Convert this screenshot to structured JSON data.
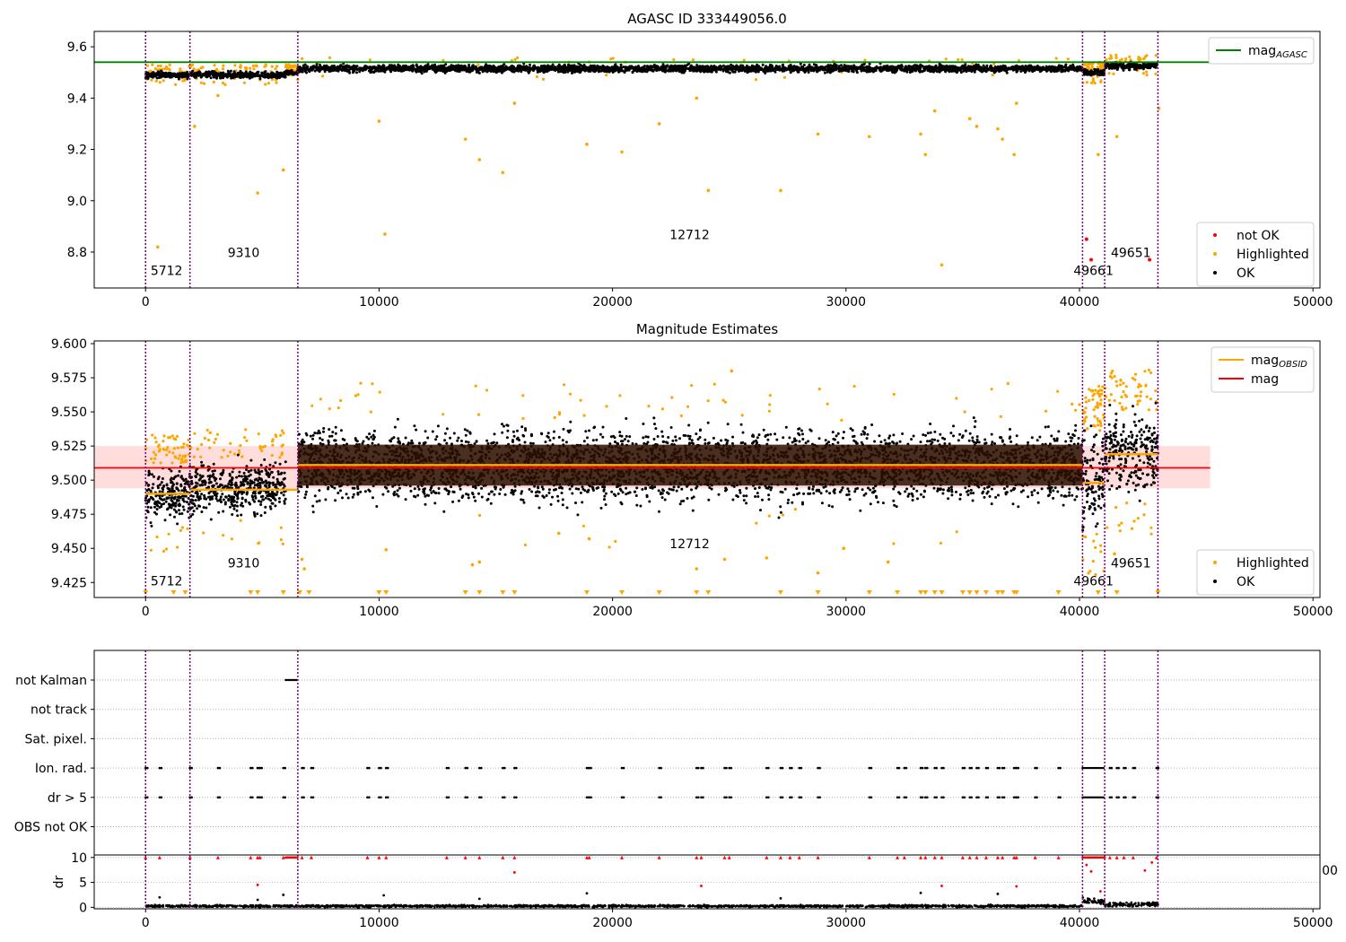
{
  "chart_data": [
    {
      "type": "scatter",
      "title": "AGASC ID 333449056.0",
      "xlim": [
        -2200,
        50300
      ],
      "ylim": [
        8.66,
        9.66
      ],
      "x_ticks": [
        0,
        10000,
        20000,
        30000,
        40000,
        50000
      ],
      "y_ticks": [
        8.8,
        9.0,
        9.2,
        9.4,
        9.6
      ],
      "y_tick_labels": [
        "8.8",
        "9.0",
        "9.2",
        "9.4",
        "9.6"
      ],
      "obs_boundaries": [
        0,
        1900,
        6520,
        40130,
        41080,
        43360
      ],
      "obs_labels": [
        {
          "text": "5712",
          "x": 900,
          "y": 8.71
        },
        {
          "text": "9310",
          "x": 4200,
          "y": 8.78
        },
        {
          "text": "12712",
          "x": 23300,
          "y": 8.85
        },
        {
          "text": "49661",
          "x": 40600,
          "y": 8.71
        },
        {
          "text": "49651",
          "x": 42200,
          "y": 8.78
        }
      ],
      "reference_lines": [
        {
          "name": "mag_AGASC",
          "value": 9.54,
          "color": "#008000",
          "x_range": [
            -2200,
            45600
          ]
        }
      ],
      "series": [
        {
          "name": "OK",
          "color": "#000000",
          "segments": [
            {
              "x": [
                0,
                1900
              ],
              "center": 9.49,
              "spread": 0.02
            },
            {
              "x": [
                1900,
                6000
              ],
              "center": 9.49,
              "spread": 0.02
            },
            {
              "x": [
                6000,
                6520
              ],
              "center": 9.5,
              "spread": 0.015
            },
            {
              "x": [
                6520,
                40130
              ],
              "center": 9.515,
              "spread": 0.022
            },
            {
              "x": [
                40130,
                41080
              ],
              "center": 9.5,
              "spread": 0.022
            },
            {
              "x": [
                41080,
                43360
              ],
              "center": 9.525,
              "spread": 0.022
            }
          ]
        },
        {
          "name": "Highlighted",
          "color": "#ffa500",
          "points": [
            [
              520,
              8.82
            ],
            [
              4800,
              9.03
            ],
            [
              5900,
              9.12
            ],
            [
              2100,
              9.29
            ],
            [
              3100,
              9.41
            ],
            [
              10000,
              9.31
            ],
            [
              10250,
              8.87
            ],
            [
              13700,
              9.24
            ],
            [
              14300,
              9.16
            ],
            [
              15300,
              9.11
            ],
            [
              15800,
              9.38
            ],
            [
              18900,
              9.22
            ],
            [
              20400,
              9.19
            ],
            [
              22000,
              9.3
            ],
            [
              23600,
              9.4
            ],
            [
              24100,
              9.04
            ],
            [
              27200,
              9.04
            ],
            [
              28800,
              9.26
            ],
            [
              31000,
              9.25
            ],
            [
              33200,
              9.26
            ],
            [
              33400,
              9.18
            ],
            [
              33800,
              9.35
            ],
            [
              34100,
              8.75
            ],
            [
              35300,
              9.32
            ],
            [
              35600,
              9.29
            ],
            [
              36500,
              9.28
            ],
            [
              36700,
              9.24
            ],
            [
              37200,
              9.18
            ],
            [
              37300,
              9.38
            ],
            [
              40800,
              9.18
            ],
            [
              41600,
              9.25
            ],
            [
              43400,
              9.36
            ]
          ],
          "band_points": 240
        },
        {
          "name": "not OK",
          "color": "#ff0000",
          "points": [
            [
              40300,
              8.85
            ],
            [
              40500,
              8.77
            ],
            [
              43000,
              8.77
            ]
          ]
        }
      ],
      "legends": [
        {
          "position": "upper right",
          "entries": [
            {
              "label": "mag",
              "subscript": "AGASC",
              "color": "#008000",
              "kind": "line"
            }
          ]
        },
        {
          "position": "lower right",
          "entries": [
            {
              "label": "not OK",
              "color": "#ff0000",
              "kind": "marker"
            },
            {
              "label": "Highlighted",
              "color": "#ffa500",
              "kind": "marker"
            },
            {
              "label": "OK",
              "color": "#000000",
              "kind": "marker"
            }
          ]
        }
      ]
    },
    {
      "type": "scatter",
      "title": "Magnitude Estimates",
      "xlim": [
        -2200,
        50300
      ],
      "ylim": [
        9.414,
        9.602
      ],
      "x_ticks": [
        0,
        10000,
        20000,
        30000,
        40000,
        50000
      ],
      "y_ticks": [
        9.425,
        9.45,
        9.475,
        9.5,
        9.525,
        9.55,
        9.575,
        9.6
      ],
      "y_tick_labels": [
        "9.425",
        "9.450",
        "9.475",
        "9.500",
        "9.525",
        "9.550",
        "9.575",
        "9.600"
      ],
      "obs_boundaries": [
        0,
        1900,
        6520,
        40130,
        41080,
        43360
      ],
      "obs_labels": [
        {
          "text": "5712",
          "x": 900,
          "y": 9.423
        },
        {
          "text": "9310",
          "x": 4200,
          "y": 9.436
        },
        {
          "text": "12712",
          "x": 23300,
          "y": 9.45
        },
        {
          "text": "49661",
          "x": 40600,
          "y": 9.423
        },
        {
          "text": "49651",
          "x": 42200,
          "y": 9.436
        }
      ],
      "band": {
        "low": 9.494,
        "high": 9.525,
        "x_range": [
          -2200,
          45600
        ],
        "color": "#ffdddd"
      },
      "dark_band": {
        "low": 9.496,
        "high": 9.526,
        "x_range": [
          6520,
          40130
        ],
        "color": "#2a1000"
      },
      "reference_lines": [
        {
          "name": "mag",
          "value": 9.509,
          "color": "#ff0000",
          "x_range": [
            -2200,
            45600
          ]
        }
      ],
      "obsid_means": [
        {
          "x": [
            0,
            1900
          ],
          "value": 9.49
        },
        {
          "x": [
            1900,
            6520
          ],
          "value": 9.493
        },
        {
          "x": [
            6520,
            40130
          ],
          "value": 9.511
        },
        {
          "x": [
            40130,
            41080
          ],
          "value": 9.498
        },
        {
          "x": [
            41080,
            43360
          ],
          "value": 9.519
        }
      ],
      "series": [
        {
          "name": "OK",
          "color": "#000000",
          "segments": [
            {
              "x": [
                0,
                1900
              ],
              "center": 9.49,
              "spread": 0.03
            },
            {
              "x": [
                1900,
                6000
              ],
              "center": 9.494,
              "spread": 0.03
            },
            {
              "x": [
                6520,
                40130
              ],
              "center": 9.511,
              "spread": 0.042
            },
            {
              "x": [
                40130,
                41080
              ],
              "center": 9.498,
              "spread": 0.05
            },
            {
              "x": [
                41080,
                43360
              ],
              "center": 9.52,
              "spread": 0.042
            }
          ]
        },
        {
          "name": "Highlighted",
          "color": "#ffa500",
          "points": [
            [
              6700,
              9.442
            ],
            [
              6800,
              9.435
            ],
            [
              10300,
              9.449
            ],
            [
              14000,
              9.438
            ],
            [
              14300,
              9.44
            ],
            [
              17700,
              9.461
            ],
            [
              19000,
              9.457
            ],
            [
              23600,
              9.435
            ],
            [
              24800,
              9.442
            ],
            [
              25100,
              9.58
            ],
            [
              26600,
              9.443
            ],
            [
              28800,
              9.432
            ],
            [
              29900,
              9.45
            ],
            [
              31800,
              9.44
            ],
            [
              41500,
              9.446
            ]
          ],
          "band_points": 320
        },
        {
          "name": "Highlighted (clipped)",
          "color": "#ffa500",
          "x": [
            0,
            1200,
            1700,
            4500,
            4800,
            5900,
            6600,
            7000,
            10000,
            10300,
            13700,
            14300,
            15300,
            15800,
            18900,
            20400,
            22000,
            23600,
            24100,
            27200,
            28800,
            31000,
            32200,
            33200,
            33400,
            33800,
            34100,
            35000,
            35300,
            35600,
            36000,
            36500,
            36700,
            37200,
            37300,
            39100,
            40800,
            41600,
            43360
          ]
        }
      ],
      "legends": [
        {
          "position": "upper right",
          "entries": [
            {
              "label": "mag",
              "subscript": "OBSID",
              "color": "#ffa500",
              "kind": "line"
            },
            {
              "label": "mag",
              "color": "#ff0000",
              "kind": "line"
            }
          ]
        },
        {
          "position": "lower right",
          "entries": [
            {
              "label": "Highlighted",
              "color": "#ffa500",
              "kind": "marker"
            },
            {
              "label": "OK",
              "color": "#000000",
              "kind": "marker"
            }
          ]
        }
      ]
    },
    {
      "type": "scatter",
      "title": "",
      "xlim": [
        -2200,
        50300
      ],
      "flag_rows": [
        "not Kalman",
        "not track",
        "Sat. pixel.",
        "Ion. rad.",
        "dr > 5",
        "OBS not OK"
      ],
      "flags": {
        "not Kalman": {
          "x_ranges": [
            [
              6000,
              6520
            ]
          ]
        },
        "Ion. rad.": {
          "x": [
            0,
            600,
            1900,
            3100,
            4500,
            4800,
            4900,
            5900,
            6700,
            7100,
            9500,
            10000,
            10300,
            12900,
            13700,
            14300,
            15300,
            15800,
            18900,
            19000,
            20400,
            22000,
            23600,
            23800,
            24800,
            25000,
            26600,
            27200,
            27600,
            28000,
            28800,
            31000,
            32200,
            32500,
            33200,
            33400,
            33800,
            34100,
            35000,
            35300,
            35600,
            36000,
            36500,
            36700,
            37200,
            37300,
            38100,
            39100,
            41300,
            41600,
            41900,
            42300,
            43300
          ],
          "x_ranges": [
            [
              40130,
              41080
            ]
          ]
        },
        "dr > 5": {
          "x": [
            0,
            600,
            1900,
            3100,
            4500,
            4800,
            4900,
            5900,
            6700,
            7100,
            9500,
            10000,
            10300,
            12900,
            13700,
            14300,
            15300,
            15800,
            18900,
            19000,
            20400,
            22000,
            23600,
            23800,
            24800,
            25000,
            26600,
            27200,
            27600,
            28000,
            28800,
            31000,
            32200,
            32500,
            33200,
            33400,
            33800,
            34100,
            35000,
            35300,
            35600,
            36000,
            36500,
            36700,
            37200,
            37300,
            38100,
            39100,
            41300,
            41600,
            41900,
            42300,
            43300
          ],
          "x_ranges": [
            [
              40130,
              41080
            ]
          ]
        }
      },
      "obs_boundaries": [
        0,
        1900,
        6520,
        40130,
        41080,
        43360
      ]
    },
    {
      "type": "scatter",
      "title": "",
      "xlim": [
        -2200,
        50300
      ],
      "ylim": [
        -0.3,
        10.5
      ],
      "ylabel": "dr",
      "x_ticks": [
        0,
        10000,
        20000,
        30000,
        40000,
        50000
      ],
      "y_ticks": [
        0,
        5,
        10
      ],
      "clipped_text": "00",
      "obs_boundaries": [
        0,
        1900,
        6520,
        40130,
        41080,
        43360
      ],
      "series": [
        {
          "name": "dr",
          "color": "#000000",
          "segments": [
            {
              "x": [
                0,
                40130
              ],
              "center": 0.25,
              "spread": 0.2
            },
            {
              "x": [
                40130,
                41080
              ],
              "center": 1.2,
              "spread": 0.6
            },
            {
              "x": [
                41080,
                43360
              ],
              "center": 0.6,
              "spread": 0.4
            }
          ],
          "points": [
            [
              600,
              2.0
            ],
            [
              4800,
              1.5
            ],
            [
              5900,
              2.5
            ],
            [
              10200,
              2.4
            ],
            [
              14300,
              1.7
            ],
            [
              18900,
              2.8
            ],
            [
              33200,
              2.9
            ],
            [
              36500,
              2.7
            ],
            [
              27200,
              1.8
            ]
          ]
        },
        {
          "name": "dr > 5",
          "color": "#ff0000",
          "points": [
            [
              15800,
              7.0
            ],
            [
              4800,
              4.5
            ],
            [
              23800,
              4.3
            ],
            [
              34100,
              4.3
            ],
            [
              37300,
              4.2
            ],
            [
              40300,
              8.5
            ],
            [
              40500,
              7.2
            ],
            [
              40900,
              3.2
            ],
            [
              42800,
              7.4
            ],
            [
              43100,
              9.0
            ]
          ],
          "clipped_x": [
            0,
            600,
            1900,
            3100,
            4500,
            4800,
            4900,
            5900,
            6700,
            7100,
            9500,
            10000,
            10300,
            12900,
            13700,
            14300,
            15300,
            15800,
            18900,
            19000,
            20400,
            22000,
            23600,
            23800,
            24800,
            25000,
            26600,
            27200,
            27600,
            28000,
            28800,
            31000,
            32200,
            32500,
            33200,
            33400,
            33800,
            34100,
            35000,
            35300,
            35600,
            36000,
            36500,
            36700,
            37200,
            37300,
            38100,
            39100,
            41300,
            41600,
            41900,
            42300,
            43300
          ],
          "clipped_ranges": [
            [
              6000,
              6520
            ],
            [
              40130,
              41080
            ]
          ]
        }
      ]
    }
  ]
}
